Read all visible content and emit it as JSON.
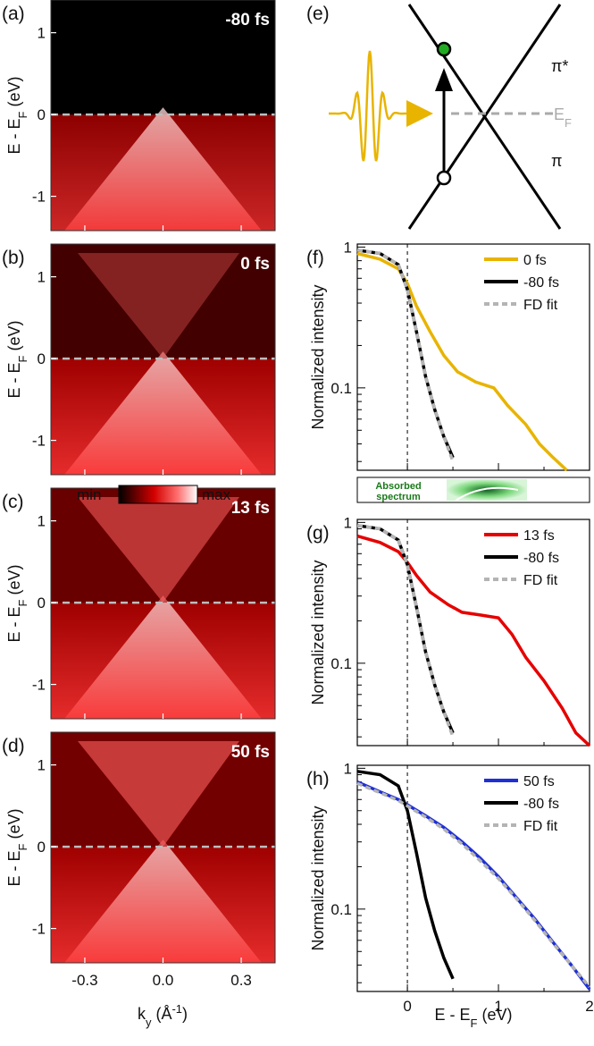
{
  "arpes_panels": [
    {
      "label": "(a)",
      "delay": "-80 fs"
    },
    {
      "label": "(b)",
      "delay": "0 fs"
    },
    {
      "label": "(c)",
      "delay": "13 fs"
    },
    {
      "label": "(d)",
      "delay": "50 fs"
    }
  ],
  "arpes_axes": {
    "ylabel": "E - E",
    "ylabel_sub": "F",
    "ylabel_unit": " (eV)",
    "yticks": [
      "1",
      "0",
      "-1"
    ],
    "xlabel": "k",
    "xlabel_sub": "y",
    "xlabel_unit": " (Å",
    "xlabel_sup": "-1",
    "xlabel_close": ")",
    "xticks": [
      "-0.3",
      "0.0",
      "0.3"
    ]
  },
  "colorbar": {
    "min_label": "min",
    "max_label": "max"
  },
  "schematic": {
    "label": "(e)",
    "upper_band": "π*",
    "lower_band": "π",
    "fermi_label": "E",
    "fermi_sub": "F",
    "pulse_color": "#e8b400"
  },
  "absorbed": {
    "line1": "Absorbed",
    "line2": "spectrum"
  },
  "spectra_axes": {
    "ylabel": "Normalized intensity",
    "xlabel": "E - E",
    "xlabel_sub": "F",
    "xlabel_unit": " (eV)",
    "yticks": [
      "1",
      "0.1"
    ],
    "xticks": [
      "0",
      "1",
      "2"
    ]
  },
  "chart_data": [
    {
      "type": "line",
      "panel": "(f)",
      "ylog": true,
      "xlim": [
        -0.55,
        2.0
      ],
      "ylim": [
        0.026,
        1.05
      ],
      "xlabel": "",
      "ylabel": "Normalized intensity",
      "legend": "top-right",
      "series": [
        {
          "name": "0 fs",
          "color": "#e8b400",
          "x": [
            -0.55,
            -0.3,
            -0.1,
            0.0,
            0.1,
            0.25,
            0.4,
            0.55,
            0.75,
            0.95,
            1.1,
            1.3,
            1.45,
            1.6,
            1.75
          ],
          "y": [
            0.9,
            0.82,
            0.7,
            0.55,
            0.38,
            0.25,
            0.17,
            0.13,
            0.11,
            0.1,
            0.075,
            0.055,
            0.04,
            0.032,
            0.026
          ]
        },
        {
          "name": "-80 fs",
          "color": "#000000",
          "x": [
            -0.55,
            -0.3,
            -0.1,
            0.0,
            0.1,
            0.2,
            0.3,
            0.4,
            0.5
          ],
          "y": [
            0.95,
            0.9,
            0.75,
            0.5,
            0.25,
            0.12,
            0.07,
            0.045,
            0.032
          ]
        },
        {
          "name": "FD fit",
          "color": "#b4b4b4",
          "dashed": true,
          "x": [
            -0.55,
            -0.3,
            -0.1,
            0.0,
            0.1,
            0.2,
            0.3,
            0.4,
            0.5
          ],
          "y": [
            0.95,
            0.9,
            0.75,
            0.5,
            0.25,
            0.12,
            0.07,
            0.045,
            0.03
          ]
        }
      ]
    },
    {
      "type": "line",
      "panel": "(g)",
      "ylog": true,
      "xlim": [
        -0.55,
        2.0
      ],
      "ylim": [
        0.026,
        1.05
      ],
      "xlabel": "",
      "ylabel": "Normalized intensity",
      "legend": "top-right",
      "series": [
        {
          "name": "13 fs",
          "color": "#e60000",
          "x": [
            -0.55,
            -0.3,
            -0.1,
            0.0,
            0.1,
            0.25,
            0.45,
            0.6,
            0.8,
            1.0,
            1.15,
            1.3,
            1.5,
            1.7,
            1.85,
            2.0
          ],
          "y": [
            0.8,
            0.72,
            0.62,
            0.52,
            0.42,
            0.32,
            0.26,
            0.23,
            0.22,
            0.21,
            0.16,
            0.11,
            0.075,
            0.048,
            0.032,
            0.026
          ]
        },
        {
          "name": "-80 fs",
          "color": "#000000",
          "x": [
            -0.55,
            -0.3,
            -0.1,
            0.0,
            0.1,
            0.2,
            0.3,
            0.4,
            0.5
          ],
          "y": [
            0.95,
            0.9,
            0.75,
            0.5,
            0.25,
            0.12,
            0.07,
            0.045,
            0.032
          ]
        },
        {
          "name": "FD fit",
          "color": "#b4b4b4",
          "dashed": true,
          "x": [
            -0.55,
            -0.3,
            -0.1,
            0.0,
            0.1,
            0.2,
            0.3,
            0.4,
            0.5
          ],
          "y": [
            0.95,
            0.9,
            0.75,
            0.5,
            0.25,
            0.12,
            0.07,
            0.045,
            0.03
          ]
        }
      ]
    },
    {
      "type": "line",
      "panel": "(h)",
      "ylog": true,
      "xlim": [
        -0.55,
        2.0
      ],
      "ylim": [
        0.026,
        1.05
      ],
      "xlabel": "E - EF (eV)",
      "ylabel": "Normalized intensity",
      "legend": "top-right",
      "series": [
        {
          "name": "50 fs",
          "color": "#1f2fd6",
          "x": [
            -0.55,
            -0.3,
            -0.1,
            0.0,
            0.2,
            0.4,
            0.6,
            0.8,
            1.0,
            1.2,
            1.4,
            1.6,
            1.8,
            2.0
          ],
          "y": [
            0.8,
            0.68,
            0.6,
            0.55,
            0.46,
            0.38,
            0.3,
            0.23,
            0.17,
            0.12,
            0.085,
            0.058,
            0.04,
            0.027
          ]
        },
        {
          "name": "-80 fs",
          "color": "#000000",
          "x": [
            -0.55,
            -0.3,
            -0.1,
            0.0,
            0.1,
            0.2,
            0.3,
            0.4,
            0.5
          ],
          "y": [
            0.95,
            0.9,
            0.75,
            0.5,
            0.25,
            0.12,
            0.07,
            0.045,
            0.032
          ]
        },
        {
          "name": "FD fit",
          "color": "#b4b4b4",
          "dashed": true,
          "x": [
            -0.55,
            -0.3,
            -0.1,
            0.0,
            0.2,
            0.4,
            0.6,
            0.8,
            1.0,
            1.2,
            1.4,
            1.6,
            1.8,
            2.0
          ],
          "y": [
            0.78,
            0.67,
            0.59,
            0.54,
            0.45,
            0.37,
            0.29,
            0.22,
            0.165,
            0.118,
            0.083,
            0.057,
            0.04,
            0.028
          ]
        }
      ]
    }
  ]
}
